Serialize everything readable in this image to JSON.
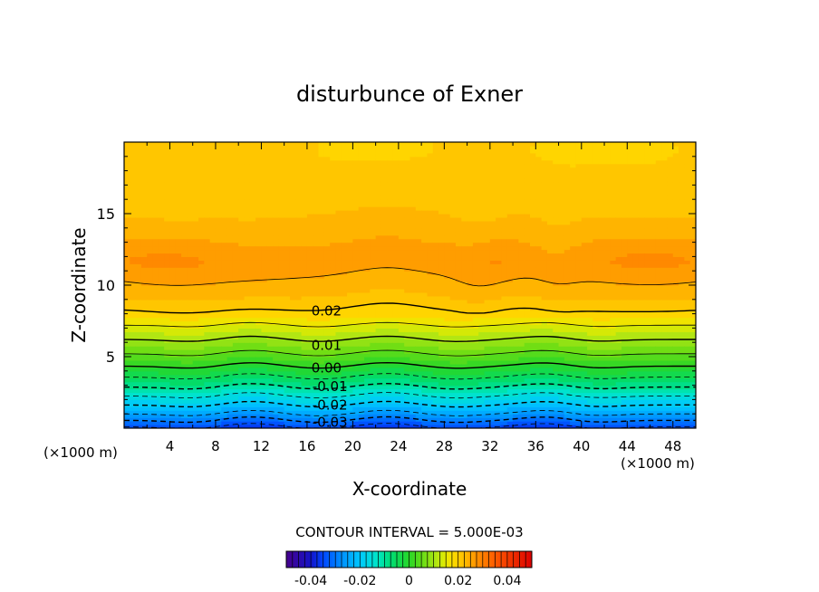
{
  "chart_data": {
    "type": "heatmap",
    "title": "disturbunce of Exner",
    "xlabel": "X-coordinate",
    "ylabel": "Z-coordinate",
    "x_unit": "(×1000 m)",
    "x_unit_left": "(×1000 m)",
    "xlim": [
      0,
      50
    ],
    "ylim": [
      0,
      20
    ],
    "x_ticks": [
      4,
      8,
      12,
      16,
      20,
      24,
      28,
      32,
      36,
      40,
      44,
      48
    ],
    "y_ticks": [
      5,
      10,
      15
    ],
    "contour_interval_text": "CONTOUR INTERVAL = 5.000E-03",
    "contour_interval": 0.005,
    "colorbar": {
      "range": [
        -0.05,
        0.05
      ],
      "ticks": [
        -0.04,
        -0.02,
        0,
        0.02,
        0.04
      ],
      "tick_labels": [
        "-0.04",
        "-0.02",
        "0",
        "0.02",
        "0.04"
      ]
    },
    "contour_labels": [
      {
        "text": "0.02",
        "x": 17.7,
        "z": 8.2
      },
      {
        "text": "0.01",
        "x": 17.7,
        "z": 5.8
      },
      {
        "text": "0.00",
        "x": 17.7,
        "z": 4.2
      },
      {
        "text": "-0.01",
        "x": 18.0,
        "z": 2.9
      },
      {
        "text": "-0.02",
        "x": 18.0,
        "z": 1.6
      },
      {
        "text": "-0.03",
        "x": 18.0,
        "z": 0.4
      }
    ],
    "profile": {
      "z": [
        0,
        1,
        2,
        3,
        4,
        5,
        6,
        7,
        8,
        9,
        10,
        11,
        12,
        13,
        14,
        15,
        16,
        17,
        18,
        19,
        20
      ],
      "value_at_x0": [
        -0.036,
        -0.025,
        -0.017,
        -0.009,
        -0.002,
        0.004,
        0.009,
        0.014,
        0.019,
        0.022,
        0.024,
        0.0255,
        0.0258,
        0.0248,
        0.0235,
        0.0225,
        0.0218,
        0.0212,
        0.021,
        0.0205,
        0.0205
      ]
    },
    "wave": {
      "lower_troughs_x": [
        6,
        17,
        29,
        41
      ],
      "lower_crests_x": [
        11,
        23,
        37
      ],
      "lower_amplitude_z": 0.25,
      "upper_dip_x": [
        31,
        38
      ],
      "upper_dip_z": 0.8
    }
  }
}
